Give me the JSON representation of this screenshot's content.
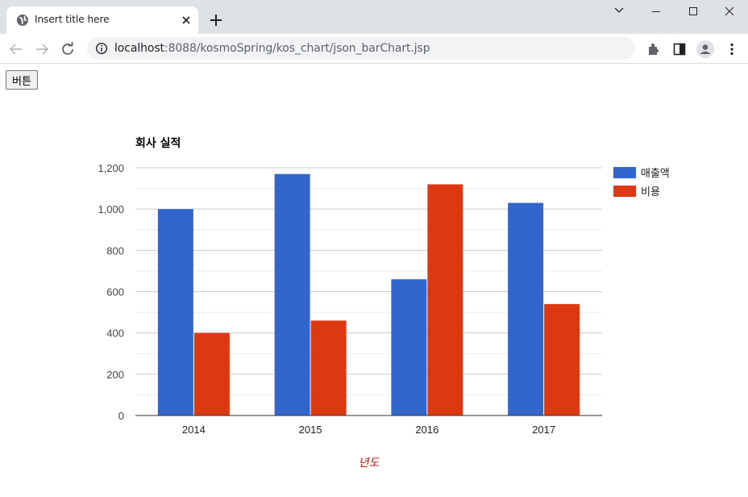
{
  "browser": {
    "tab_title": "Insert title here",
    "url_host": "localhost",
    "url_rest": ":8088/kosmoSpring/kos_chart/json_barChart.jsp"
  },
  "page": {
    "button_label": "버튼"
  },
  "chart_data": {
    "type": "bar",
    "title": "회사 실적",
    "xlabel": "년도",
    "ylabel": "",
    "categories": [
      "2014",
      "2015",
      "2016",
      "2017"
    ],
    "series": [
      {
        "name": "매출액",
        "values": [
          1000,
          1170,
          660,
          1030
        ],
        "color": "#3366cc"
      },
      {
        "name": "비용",
        "values": [
          400,
          460,
          1120,
          540
        ],
        "color": "#dc3912"
      }
    ],
    "ylim": [
      0,
      1200
    ],
    "yticks": [
      "0",
      "200",
      "400",
      "600",
      "800",
      "1,000",
      "1,200"
    ],
    "grid": true,
    "legend": "right"
  }
}
